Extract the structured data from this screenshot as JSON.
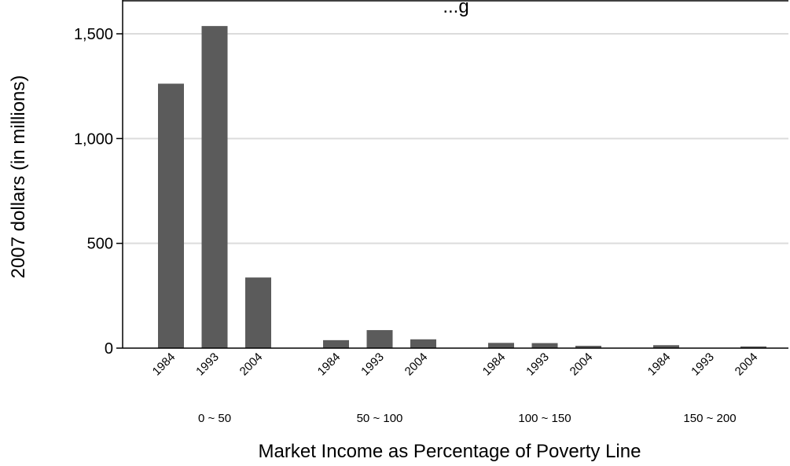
{
  "chart_data": {
    "type": "bar",
    "title": "...g",
    "xlabel": "Market Income as Percentage of Poverty Line",
    "ylabel": "2007 dollars (in millions)",
    "ylim": [
      0,
      1600
    ],
    "yticks": [
      0,
      500,
      1000,
      1500
    ],
    "ytick_labels": [
      "0",
      "500",
      "1,000",
      "1,500"
    ],
    "grid": true,
    "bar_color": "#5b5b5b",
    "groups": [
      {
        "label": "0 ~ 50",
        "bars": [
          {
            "year": "1984",
            "value": 1262
          },
          {
            "year": "1993",
            "value": 1537
          },
          {
            "year": "2004",
            "value": 337
          }
        ]
      },
      {
        "label": "50 ~ 100",
        "bars": [
          {
            "year": "1984",
            "value": 38
          },
          {
            "year": "1993",
            "value": 86
          },
          {
            "year": "2004",
            "value": 42
          }
        ]
      },
      {
        "label": "100 ~ 150",
        "bars": [
          {
            "year": "1984",
            "value": 25
          },
          {
            "year": "1993",
            "value": 24
          },
          {
            "year": "2004",
            "value": 11
          }
        ]
      },
      {
        "label": "150 ~ 200",
        "bars": [
          {
            "year": "1984",
            "value": 14
          },
          {
            "year": "1993",
            "value": 0
          },
          {
            "year": "2004",
            "value": 8
          }
        ]
      }
    ]
  }
}
